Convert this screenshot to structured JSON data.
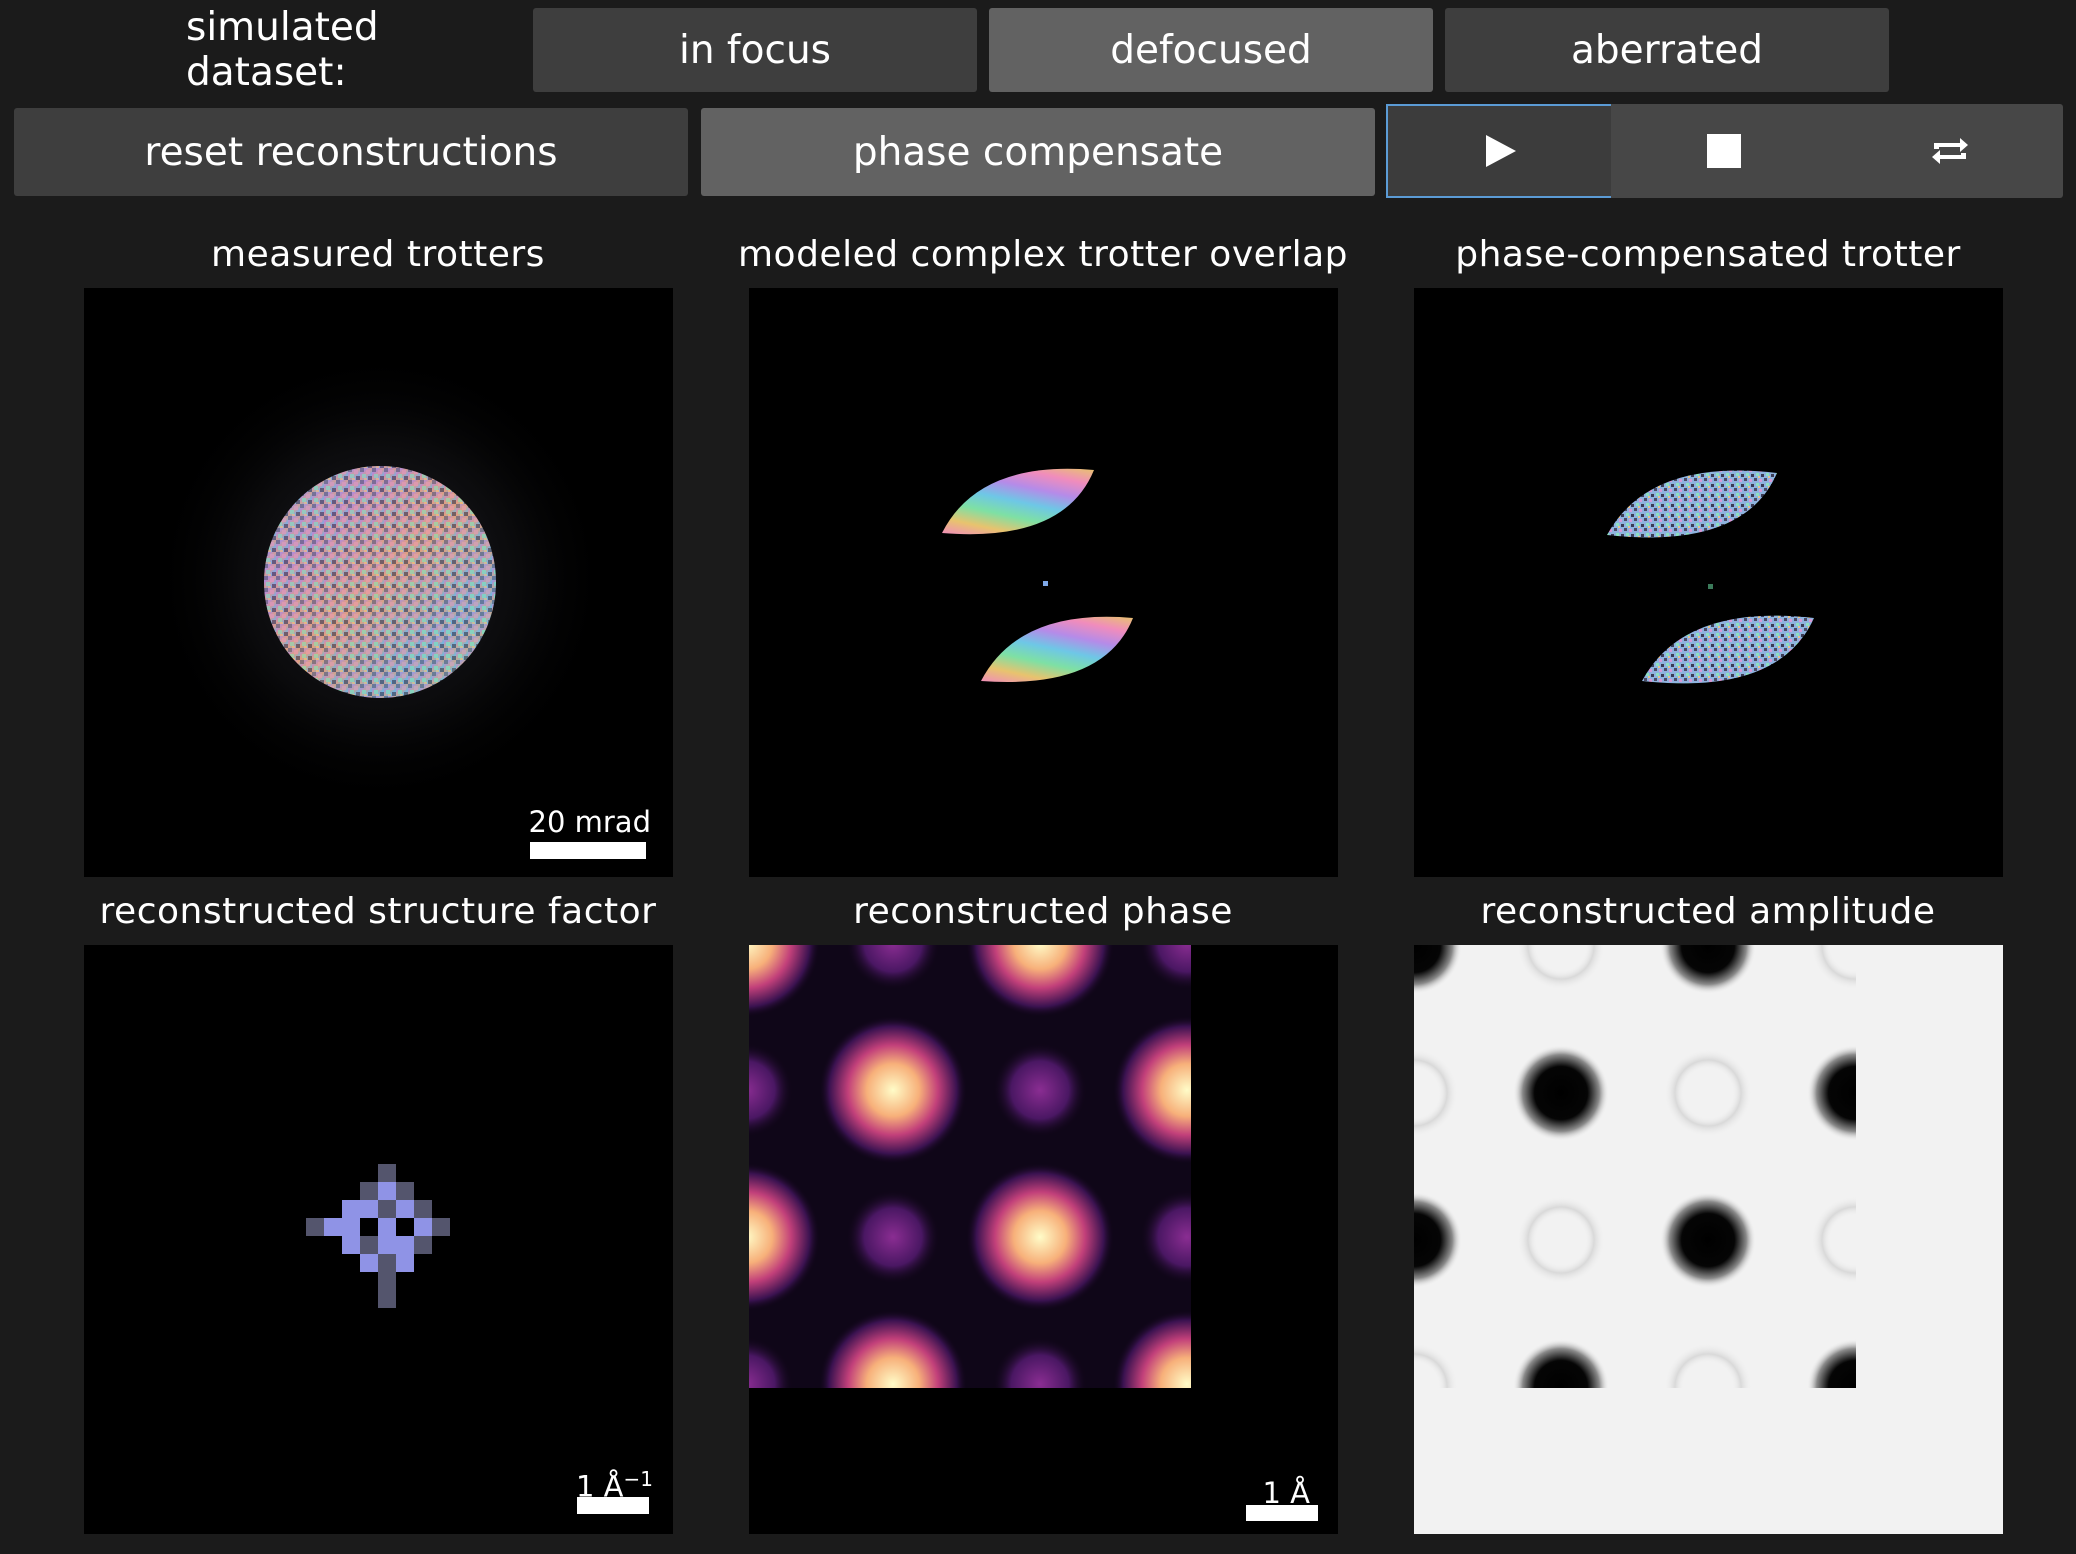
{
  "controls": {
    "dataset_label": "simulated dataset:",
    "dataset_buttons": [
      "in focus",
      "defocused",
      "aberrated"
    ],
    "reset_label": "reset reconstructions",
    "phase_label": "phase compensate",
    "player_icons": [
      "play-icon",
      "stop-icon",
      "loop-icon"
    ]
  },
  "panels": {
    "measured": {
      "title": "measured trotters",
      "scale_label": "20 mrad"
    },
    "modeled": {
      "title": "modeled complex trotter overlap"
    },
    "compensated": {
      "title": "phase-compensated trotter"
    },
    "structure": {
      "title": "reconstructed structure factor",
      "scale_label": "1 Å",
      "scale_sup": "−1"
    },
    "phase": {
      "title": "reconstructed phase",
      "scale_label": "1 Å"
    },
    "amplitude": {
      "title": "reconstructed amplitude"
    }
  },
  "colors": {
    "background": "#1b1b1b",
    "button_dark": "#3e3e3e",
    "button_light": "#626262",
    "active_outline": "#5b9bd5",
    "structure_pixel": "#8f93e6"
  }
}
